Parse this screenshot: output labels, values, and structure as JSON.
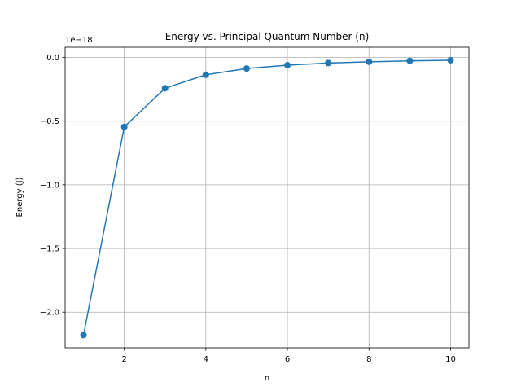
{
  "chart_data": {
    "type": "line",
    "title": "Energy vs. Principal Quantum Number (n)",
    "xlabel": "n",
    "ylabel": "Energy (J)",
    "y_offset_label": "1e−18",
    "y_multiplier": 1e-18,
    "xlim": [
      0.55,
      10.45
    ],
    "ylim": [
      -2.28,
      0.08
    ],
    "grid": true,
    "x_ticks": [
      2,
      4,
      6,
      8,
      10
    ],
    "x_tick_labels": [
      "2",
      "4",
      "6",
      "8",
      "10"
    ],
    "y_ticks": [
      0.0,
      -0.5,
      -1.0,
      -1.5,
      -2.0
    ],
    "y_tick_labels": [
      "0.0",
      "−0.5",
      "−1.0",
      "−1.5",
      "−2.0"
    ],
    "series": [
      {
        "color": "#1f77b4",
        "marker": "circle",
        "x": [
          1,
          2,
          3,
          4,
          5,
          6,
          7,
          8,
          9,
          10
        ],
        "y": [
          -2.18,
          -0.545,
          -0.242,
          -0.136,
          -0.087,
          -0.061,
          -0.044,
          -0.034,
          -0.027,
          -0.022
        ]
      }
    ]
  }
}
